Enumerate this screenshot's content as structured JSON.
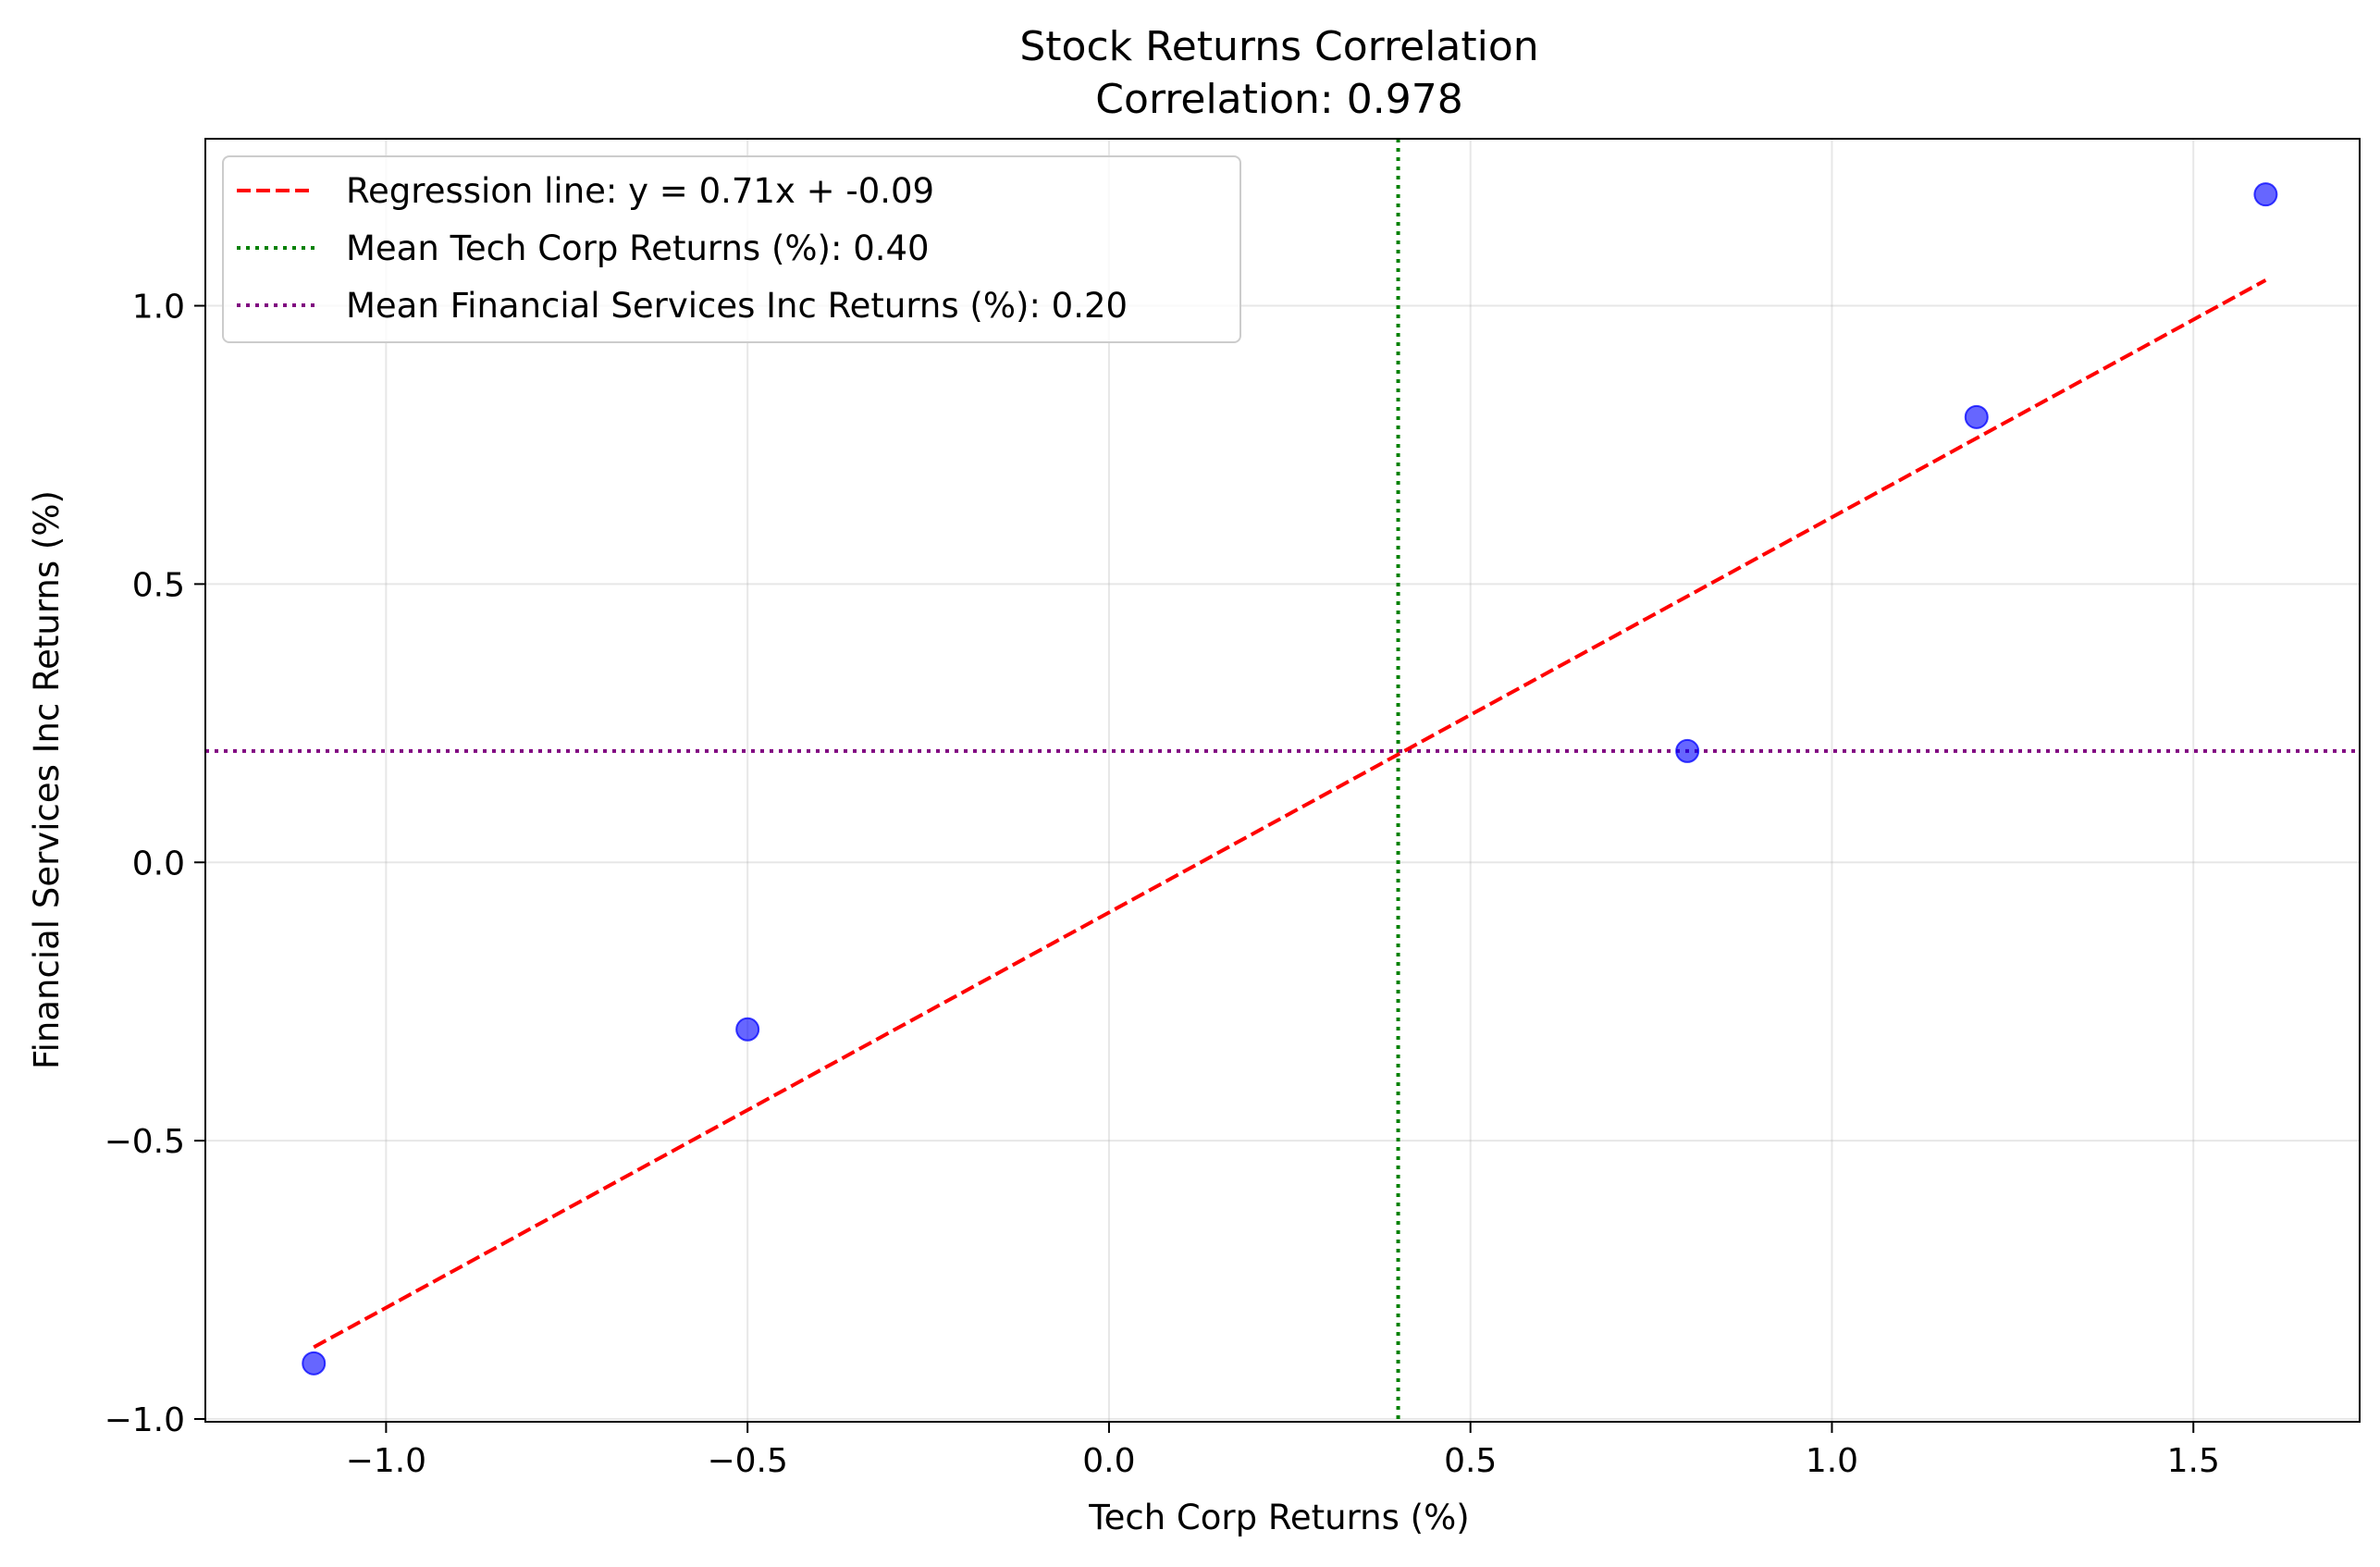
{
  "chart_data": {
    "type": "scatter",
    "title": "Stock Returns Correlation",
    "subtitle": "Correlation: 0.978",
    "xlabel": "Tech Corp Returns (%)",
    "ylabel": "Financial Services Inc Returns (%)",
    "xlim": [
      -1.25,
      1.73
    ],
    "ylim": [
      -1.005,
      1.3
    ],
    "grid": true,
    "legend_placement": "upper-left",
    "x_ticks": [
      -1.0,
      -0.5,
      0.0,
      0.5,
      1.0,
      1.5
    ],
    "x_tick_labels": [
      "−1.0",
      "−0.5",
      "0.0",
      "0.5",
      "1.0",
      "1.5"
    ],
    "y_ticks": [
      -1.0,
      -0.5,
      0.0,
      0.5,
      1.0
    ],
    "y_tick_labels": [
      "−1.0",
      "−0.5",
      "0.0",
      "0.5",
      "1.0"
    ],
    "points": {
      "x": [
        -1.1,
        -0.5,
        0.8,
        1.2,
        1.6
      ],
      "y": [
        -0.9,
        -0.3,
        0.2,
        0.8,
        1.2
      ],
      "color": "#0000ff"
    },
    "regression": {
      "label": "Regression line: y = 0.71x + -0.09",
      "slope": 0.71,
      "intercept": -0.09,
      "x_range": [
        -1.1,
        1.6
      ],
      "color": "#ff0000",
      "style": "dashed"
    },
    "mean_x": {
      "label": "Mean Tech Corp Returns (%): 0.40",
      "value": 0.4,
      "color": "#008000",
      "style": "dotted"
    },
    "mean_y": {
      "label": "Mean Financial Services Inc Returns (%): 0.20",
      "value": 0.2,
      "color": "#800080",
      "style": "dotted"
    }
  }
}
